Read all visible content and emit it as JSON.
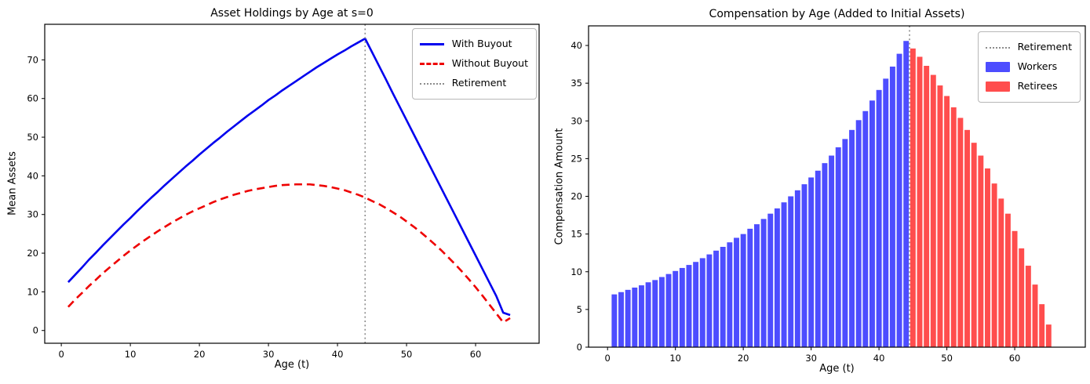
{
  "figure": {
    "background": "#ffffff"
  },
  "colors": {
    "with_buyout_line": "#0000ee",
    "without_buyout_line": "#ee0000",
    "retirement_line": "#8c8c8c",
    "workers_bar": "#4d4dff",
    "retirees_bar": "#ff4d4d",
    "spine": "#000000"
  },
  "chart_data": [
    {
      "type": "line",
      "title": "Asset Holdings by Age at s=0",
      "xlabel": "Age (t)",
      "ylabel": "Mean Assets",
      "xlim": [
        -2.4,
        69.2
      ],
      "ylim": [
        -3.3,
        79.2
      ],
      "xticks": [
        0,
        10,
        20,
        30,
        40,
        50,
        60
      ],
      "yticks": [
        0,
        10,
        20,
        30,
        40,
        50,
        60,
        70
      ],
      "grid": false,
      "legend_position": "upper right",
      "retirement_x": 44,
      "series": [
        {
          "name": "With Buyout",
          "style": "solid",
          "color": "#0000ee",
          "x_start": 1,
          "y": [
            12.5,
            14.4,
            16.3,
            18.3,
            20.1,
            22.0,
            23.8,
            25.6,
            27.4,
            29.1,
            30.9,
            32.6,
            34.3,
            35.9,
            37.6,
            39.2,
            40.8,
            42.4,
            43.9,
            45.5,
            47.0,
            48.5,
            49.9,
            51.4,
            52.8,
            54.2,
            55.6,
            56.9,
            58.2,
            59.6,
            60.8,
            62.1,
            63.3,
            64.5,
            65.7,
            66.9,
            68.1,
            69.2,
            70.3,
            71.4,
            72.4,
            73.5,
            74.5,
            75.5,
            72.0,
            68.5,
            65.0,
            61.4,
            57.9,
            54.4,
            50.9,
            47.4,
            43.9,
            40.4,
            36.9,
            33.4,
            29.9,
            26.4,
            22.9,
            19.4,
            15.9,
            12.4,
            8.9,
            4.6,
            4.0
          ]
        },
        {
          "name": "Without Buyout",
          "style": "dashed",
          "color": "#ee0000",
          "x_start": 1,
          "y": [
            6.1,
            8.0,
            9.7,
            11.5,
            13.1,
            14.8,
            16.3,
            17.8,
            19.3,
            20.7,
            22.0,
            23.3,
            24.5,
            25.7,
            26.8,
            27.9,
            28.9,
            29.9,
            30.8,
            31.6,
            32.4,
            33.2,
            33.9,
            34.5,
            35.1,
            35.6,
            36.1,
            36.5,
            36.8,
            37.1,
            37.4,
            37.6,
            37.7,
            37.8,
            37.8,
            37.8,
            37.6,
            37.4,
            37.1,
            36.7,
            36.3,
            35.7,
            35.1,
            34.4,
            33.5,
            32.7,
            31.7,
            30.6,
            29.5,
            28.2,
            26.9,
            25.5,
            24.0,
            22.4,
            20.8,
            19.0,
            17.2,
            15.3,
            13.3,
            11.2,
            9.0,
            6.7,
            4.4,
            2.1,
            3.2
          ]
        }
      ],
      "legend_items": [
        {
          "label": "With Buyout",
          "swatch": "line-solid",
          "color": "#0000ee"
        },
        {
          "label": "Without Buyout",
          "swatch": "line-dashed",
          "color": "#ee0000"
        },
        {
          "label": "Retirement",
          "swatch": "line-dotted",
          "color": "#8c8c8c"
        }
      ]
    },
    {
      "type": "bar",
      "title": "Compensation by Age (Added to Initial Assets)",
      "xlabel": "Age (t)",
      "ylabel": "Compensation Amount",
      "xlim": [
        -2.8,
        70.4
      ],
      "ylim": [
        0,
        42.6
      ],
      "xticks": [
        0,
        10,
        20,
        30,
        40,
        50,
        60
      ],
      "yticks": [
        0,
        5,
        10,
        15,
        20,
        25,
        30,
        35,
        40
      ],
      "grid": false,
      "legend_position": "upper right",
      "retirement_x": 44.5,
      "bar_width": 0.8,
      "series": [
        {
          "name": "Workers",
          "color": "#4d4dff",
          "x_start": 1,
          "values": [
            7.0,
            7.3,
            7.6,
            7.9,
            8.2,
            8.6,
            8.9,
            9.3,
            9.7,
            10.1,
            10.5,
            10.9,
            11.3,
            11.8,
            12.3,
            12.8,
            13.3,
            13.9,
            14.5,
            15.0,
            15.7,
            16.3,
            17.0,
            17.7,
            18.4,
            19.2,
            20.0,
            20.8,
            21.6,
            22.5,
            23.4,
            24.4,
            25.4,
            26.5,
            27.6,
            28.8,
            30.1,
            31.3,
            32.7,
            34.1,
            35.6,
            37.2,
            38.9,
            40.6
          ]
        },
        {
          "name": "Retirees",
          "color": "#ff4d4d",
          "x_start": 45,
          "values": [
            39.6,
            38.5,
            37.3,
            36.1,
            34.7,
            33.3,
            31.8,
            30.4,
            28.8,
            27.1,
            25.4,
            23.7,
            21.7,
            19.7,
            17.7,
            15.4,
            13.1,
            10.8,
            8.3,
            5.7,
            3.0
          ]
        }
      ],
      "legend_items": [
        {
          "label": "Retirement",
          "swatch": "line-dotted",
          "color": "#8c8c8c"
        },
        {
          "label": "Workers",
          "swatch": "patch",
          "color": "#4d4dff"
        },
        {
          "label": "Retirees",
          "swatch": "patch",
          "color": "#ff4d4d"
        }
      ]
    }
  ]
}
